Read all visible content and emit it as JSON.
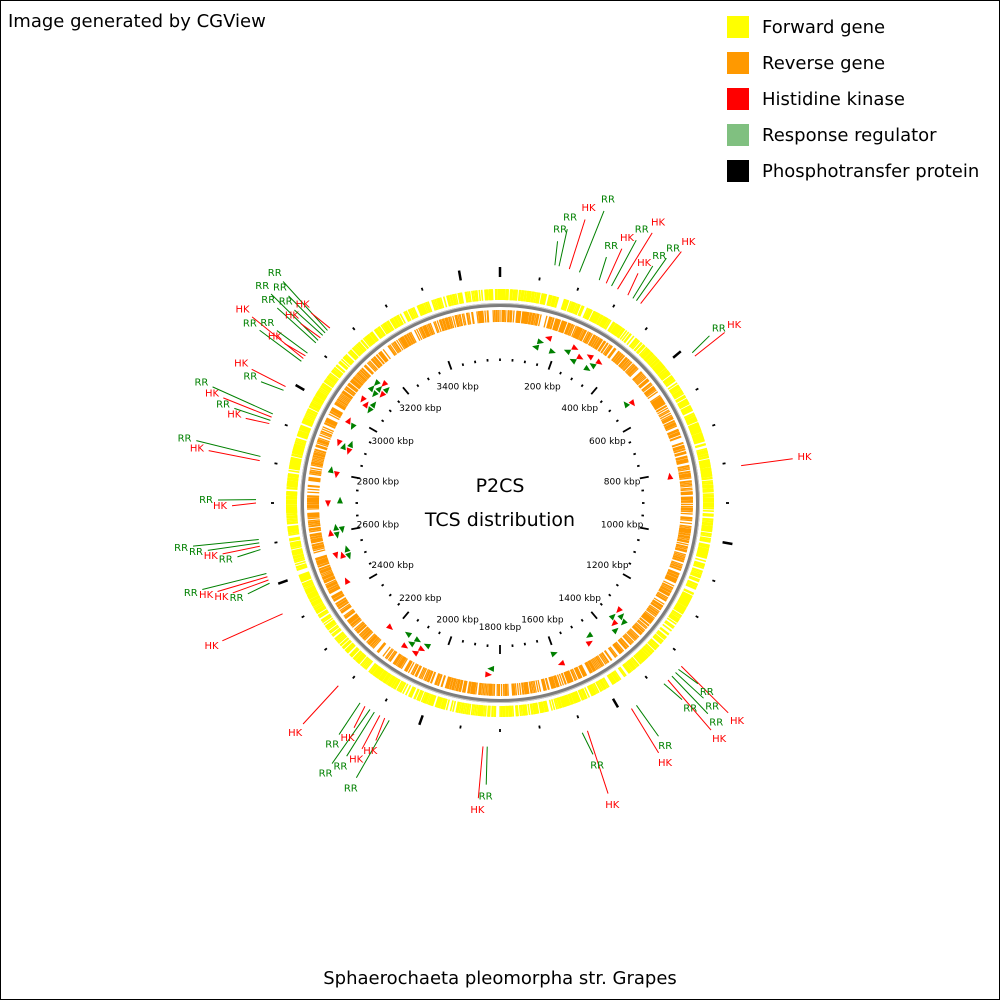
{
  "header": {
    "credit": "Image generated by CGView"
  },
  "legend": [
    {
      "label": "Forward gene",
      "color": "#ffff00"
    },
    {
      "label": "Reverse gene",
      "color": "#ff9900"
    },
    {
      "label": "Histidine kinase",
      "color": "#ff0000"
    },
    {
      "label": "Response regulator",
      "color": "#80c080"
    },
    {
      "label": "Phosphotransfer protein",
      "color": "#000000"
    }
  ],
  "center": {
    "line1": "P2CS",
    "line2": "TCS distribution"
  },
  "caption": "Sphaerochaeta pleomorpha str. Grapes",
  "map": {
    "genome_length_kbp": 3600,
    "tick_labels": [
      "200 kbp",
      "400 kbp",
      "600 kbp",
      "800 kbp",
      "1000 kbp",
      "1200 kbp",
      "1400 kbp",
      "1600 kbp",
      "1800 kbp",
      "2000 kbp",
      "2200 kbp",
      "2400 kbp",
      "2600 kbp",
      "2800 kbp",
      "3000 kbp",
      "3200 kbp",
      "3400 kbp"
    ],
    "tick_positions_kbp": [
      200,
      400,
      600,
      800,
      1000,
      1200,
      1400,
      1600,
      1800,
      2000,
      2200,
      2400,
      2600,
      2800,
      3000,
      3200,
      3400
    ],
    "colors": {
      "HK": "#ff0000",
      "RR": "#008000",
      "forward": "#ffff00",
      "reverse": "#ff9900",
      "backbone": "#808080"
    },
    "features": [
      {
        "label": "RR",
        "kbp": 130
      },
      {
        "label": "RR",
        "kbp": 140
      },
      {
        "label": "HK",
        "kbp": 165
      },
      {
        "label": "RR",
        "kbp": 190
      },
      {
        "label": "RR",
        "kbp": 240
      },
      {
        "label": "HK",
        "kbp": 258
      },
      {
        "label": "RR",
        "kbp": 272
      },
      {
        "label": "HK",
        "kbp": 288
      },
      {
        "label": "HK",
        "kbp": 316
      },
      {
        "label": "RR",
        "kbp": 330
      },
      {
        "label": "RR",
        "kbp": 340
      },
      {
        "label": "HK",
        "kbp": 352
      },
      {
        "label": "RR",
        "kbp": 520
      },
      {
        "label": "HK",
        "kbp": 530
      },
      {
        "label": "HK",
        "kbp": 812
      },
      {
        "label": "HK",
        "kbp": 1320
      },
      {
        "label": "RR",
        "kbp": 1330
      },
      {
        "label": "RR",
        "kbp": 1340
      },
      {
        "label": "RR",
        "kbp": 1352
      },
      {
        "label": "HK",
        "kbp": 1365
      },
      {
        "label": "RR",
        "kbp": 1378
      },
      {
        "label": "RR",
        "kbp": 1460
      },
      {
        "label": "HK",
        "kbp": 1474
      },
      {
        "label": "HK",
        "kbp": 1590
      },
      {
        "label": "RR",
        "kbp": 1603
      },
      {
        "label": "RR",
        "kbp": 1830
      },
      {
        "label": "HK",
        "kbp": 1840
      },
      {
        "label": "RR",
        "kbp": 2070
      },
      {
        "label": "HK",
        "kbp": 2082
      },
      {
        "label": "HK",
        "kbp": 2095
      },
      {
        "label": "RR",
        "kbp": 2110
      },
      {
        "label": "RR",
        "kbp": 2122
      },
      {
        "label": "HK",
        "kbp": 2136
      },
      {
        "label": "RR",
        "kbp": 2150
      },
      {
        "label": "HK",
        "kbp": 2215
      },
      {
        "label": "HK",
        "kbp": 2430
      },
      {
        "label": "RR",
        "kbp": 2508
      },
      {
        "label": "HK",
        "kbp": 2516
      },
      {
        "label": "HK",
        "kbp": 2524
      },
      {
        "label": "RR",
        "kbp": 2532
      },
      {
        "label": "RR",
        "kbp": 2590
      },
      {
        "label": "HK",
        "kbp": 2598
      },
      {
        "label": "RR",
        "kbp": 2606
      },
      {
        "label": "RR",
        "kbp": 2614
      },
      {
        "label": "HK",
        "kbp": 2700
      },
      {
        "label": "RR",
        "kbp": 2708
      },
      {
        "label": "HK",
        "kbp": 2800
      },
      {
        "label": "RR",
        "kbp": 2810
      },
      {
        "label": "HK",
        "kbp": 2890
      },
      {
        "label": "RR",
        "kbp": 2898
      },
      {
        "label": "HK",
        "kbp": 2906
      },
      {
        "label": "RR",
        "kbp": 2914
      },
      {
        "label": "RR",
        "kbp": 2975
      },
      {
        "label": "HK",
        "kbp": 2985
      },
      {
        "label": "RR",
        "kbp": 3055
      },
      {
        "label": "HK",
        "kbp": 3063
      },
      {
        "label": "HK",
        "kbp": 3071
      },
      {
        "label": "RR",
        "kbp": 3079
      },
      {
        "label": "RR",
        "kbp": 3110
      },
      {
        "label": "RR",
        "kbp": 3118
      },
      {
        "label": "HK",
        "kbp": 3126
      },
      {
        "label": "RR",
        "kbp": 3134
      },
      {
        "label": "RR",
        "kbp": 3142
      },
      {
        "label": "RR",
        "kbp": 3150
      },
      {
        "label": "HK",
        "kbp": 3158
      }
    ]
  }
}
